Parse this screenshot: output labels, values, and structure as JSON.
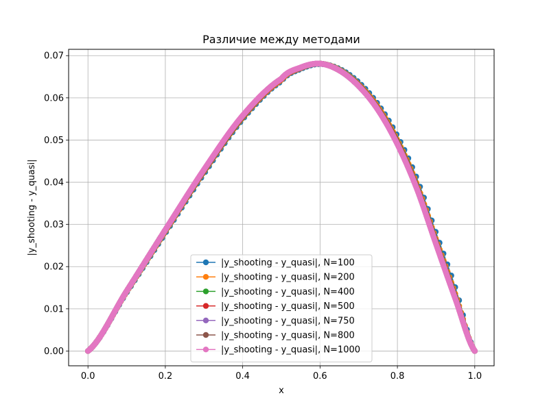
{
  "chart_data": {
    "type": "line",
    "title": "Различие между методами",
    "xlabel": "x",
    "ylabel": "|y_shooting - y_quasi|",
    "xlim": [
      -0.05,
      1.05
    ],
    "ylim": [
      -0.0035,
      0.0715
    ],
    "xticks": [
      0.0,
      0.2,
      0.4,
      0.6,
      0.8,
      1.0
    ],
    "xtick_labels": [
      "0.0",
      "0.2",
      "0.4",
      "0.6",
      "0.8",
      "1.0"
    ],
    "yticks": [
      0.0,
      0.01,
      0.02,
      0.03,
      0.04,
      0.05,
      0.06,
      0.07
    ],
    "ytick_labels": [
      "0.00",
      "0.01",
      "0.02",
      "0.03",
      "0.04",
      "0.05",
      "0.06",
      "0.07"
    ],
    "grid": true,
    "legend_position": "lower-center",
    "marker": "circle",
    "x_profile": [
      0.0,
      0.1,
      0.2,
      0.3,
      0.4,
      0.5,
      0.55,
      0.6,
      0.65,
      0.7,
      0.75,
      0.8,
      0.85,
      0.9,
      0.95,
      1.0
    ],
    "series": [
      {
        "name": "|y_shooting - y_quasi|, N=100",
        "color": "#1f77b4",
        "points": 100,
        "y": [
          0.0,
          0.0138,
          0.0279,
          0.042,
          0.0549,
          0.0639,
          0.0668,
          0.068,
          0.0669,
          0.0637,
          0.0585,
          0.051,
          0.041,
          0.028,
          0.015,
          0.0
        ]
      },
      {
        "name": "|y_shooting - y_quasi|, N=200",
        "color": "#ff7f0e",
        "points": 200,
        "y": [
          0.0,
          0.014,
          0.0283,
          0.0425,
          0.0553,
          0.0642,
          0.067,
          0.0681,
          0.0667,
          0.0632,
          0.0578,
          0.05,
          0.0397,
          0.0265,
          0.0135,
          0.0
        ]
      },
      {
        "name": "|y_shooting - y_quasi|, N=400",
        "color": "#2ca02c",
        "points": 400,
        "y": [
          0.0,
          0.0141,
          0.0285,
          0.0427,
          0.0555,
          0.0644,
          0.0671,
          0.0681,
          0.0666,
          0.063,
          0.0574,
          0.0495,
          0.039,
          0.0258,
          0.0128,
          0.0
        ]
      },
      {
        "name": "|y_shooting - y_quasi|, N=500",
        "color": "#d62728",
        "points": 500,
        "y": [
          0.0,
          0.0142,
          0.0286,
          0.0428,
          0.0556,
          0.0644,
          0.0671,
          0.0681,
          0.0665,
          0.0629,
          0.0573,
          0.0493,
          0.0388,
          0.0256,
          0.0126,
          0.0
        ]
      },
      {
        "name": "|y_shooting - y_quasi|, N=750",
        "color": "#9467bd",
        "points": 750,
        "y": [
          0.0,
          0.0142,
          0.0287,
          0.0429,
          0.0557,
          0.0645,
          0.0671,
          0.0681,
          0.0665,
          0.0628,
          0.0572,
          0.0491,
          0.0386,
          0.0254,
          0.0124,
          0.0
        ]
      },
      {
        "name": "|y_shooting - y_quasi|, N=800",
        "color": "#8c564b",
        "points": 800,
        "y": [
          0.0,
          0.0142,
          0.0287,
          0.0429,
          0.0557,
          0.0645,
          0.0671,
          0.0681,
          0.0665,
          0.0628,
          0.0572,
          0.0491,
          0.0386,
          0.0254,
          0.0124,
          0.0
        ]
      },
      {
        "name": "|y_shooting - y_quasi|, N=1000",
        "color": "#e377c2",
        "points": 1000,
        "y": [
          0.0,
          0.0142,
          0.0287,
          0.043,
          0.0558,
          0.0645,
          0.0672,
          0.0681,
          0.0665,
          0.0628,
          0.0571,
          0.049,
          0.0385,
          0.0253,
          0.0123,
          0.0
        ]
      }
    ]
  }
}
